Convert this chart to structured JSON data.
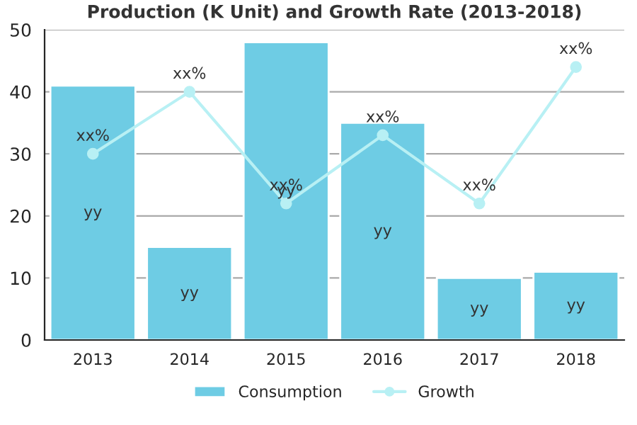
{
  "chart_data": {
    "type": "bar",
    "title": "Production (K Unit) and Growth Rate (2013-2018)",
    "categories": [
      "2013",
      "2014",
      "2015",
      "2016",
      "2017",
      "2018"
    ],
    "series": [
      {
        "name": "Consumption",
        "color": "#6ecce4",
        "values": [
          41,
          15,
          48,
          35,
          10,
          11
        ],
        "value_labels": [
          "yy",
          "yy",
          "yy",
          "yy",
          "yy",
          "yy"
        ]
      },
      {
        "name": "Growth",
        "type": "line",
        "color": "#b8f0f4",
        "marker": "circle",
        "values": [
          30,
          40,
          22,
          33,
          22,
          44
        ],
        "value_labels": [
          "xx%",
          "xx%",
          "xx%",
          "xx%",
          "xx%",
          "xx%"
        ]
      }
    ],
    "ylim": [
      0,
      50
    ],
    "yticks": [
      0,
      10,
      20,
      30,
      40,
      50
    ],
    "grid": "y",
    "legend": "bottom"
  }
}
